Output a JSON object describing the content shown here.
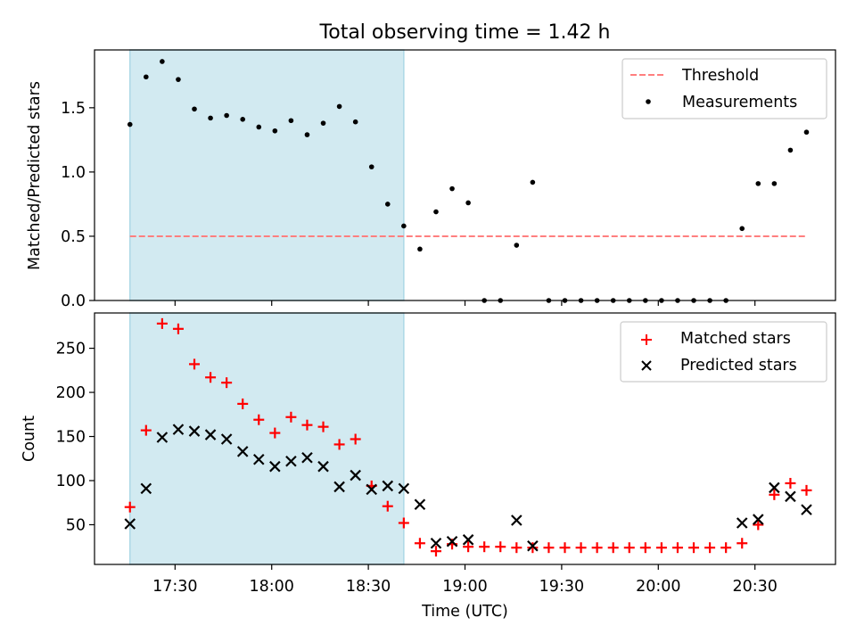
{
  "figure": {
    "title": "Total observing time = 1.42 h",
    "xlabel": "Time (UTC)",
    "xticks": [
      "17:30",
      "18:00",
      "18:30",
      "19:00",
      "19:30",
      "20:00",
      "20:30"
    ],
    "colors": {
      "span": "#add8e6",
      "threshold": "#ff7f7f",
      "measurements": "#000000",
      "matched": "#ff0000",
      "predicted": "#000000"
    }
  },
  "chart_data": [
    {
      "type": "scatter",
      "ylabel": "Matched/Predicted stars",
      "xlim": [
        "17:05",
        "20:55"
      ],
      "ylim": [
        0,
        1.95
      ],
      "yticks": [
        "0.0",
        "0.5",
        "1.0",
        "1.5"
      ],
      "observing_span": [
        "17:16",
        "18:41"
      ],
      "legend": {
        "position": "upper right",
        "entries": [
          "Threshold",
          "Measurements"
        ]
      },
      "series": [
        {
          "name": "Threshold",
          "kind": "dashed-line",
          "x": [
            "17:16",
            "20:46"
          ],
          "y": [
            0.5,
            0.5
          ]
        },
        {
          "name": "Measurements",
          "kind": "points",
          "x": [
            "17:16",
            "17:21",
            "17:26",
            "17:31",
            "17:36",
            "17:41",
            "17:46",
            "17:51",
            "17:56",
            "18:01",
            "18:06",
            "18:11",
            "18:16",
            "18:21",
            "18:26",
            "18:31",
            "18:36",
            "18:41",
            "18:46",
            "18:51",
            "18:56",
            "19:01",
            "19:06",
            "19:11",
            "19:16",
            "19:21",
            "19:26",
            "19:31",
            "19:36",
            "19:41",
            "19:46",
            "19:51",
            "19:56",
            "20:01",
            "20:06",
            "20:11",
            "20:16",
            "20:21",
            "20:26",
            "20:31",
            "20:36",
            "20:41",
            "20:46"
          ],
          "y": [
            1.37,
            1.74,
            1.86,
            1.72,
            1.49,
            1.42,
            1.44,
            1.41,
            1.35,
            1.32,
            1.4,
            1.29,
            1.38,
            1.51,
            1.39,
            1.04,
            0.75,
            0.58,
            0.4,
            0.69,
            0.87,
            0.76,
            0.0,
            0.0,
            0.43,
            0.92,
            0.0,
            0.0,
            0.0,
            0.0,
            0.0,
            0.0,
            0.0,
            0.0,
            0.0,
            0.0,
            0.0,
            0.0,
            0.56,
            0.91,
            0.91,
            1.17,
            1.31
          ]
        }
      ]
    },
    {
      "type": "scatter",
      "ylabel": "Count",
      "xlim": [
        "17:05",
        "20:55"
      ],
      "ylim": [
        5,
        290
      ],
      "yticks": [
        "50",
        "100",
        "150",
        "200",
        "250"
      ],
      "observing_span": [
        "17:16",
        "18:41"
      ],
      "legend": {
        "position": "upper right",
        "entries": [
          "Matched stars",
          "Predicted stars"
        ]
      },
      "series": [
        {
          "name": "Matched stars",
          "marker": "plus",
          "x": [
            "17:16",
            "17:21",
            "17:26",
            "17:31",
            "17:36",
            "17:41",
            "17:46",
            "17:51",
            "17:56",
            "18:01",
            "18:06",
            "18:11",
            "18:16",
            "18:21",
            "18:26",
            "18:31",
            "18:36",
            "18:41",
            "18:46",
            "18:51",
            "18:56",
            "19:01",
            "19:06",
            "19:11",
            "19:16",
            "19:21",
            "19:26",
            "19:31",
            "19:36",
            "19:41",
            "19:46",
            "19:51",
            "19:56",
            "20:01",
            "20:06",
            "20:11",
            "20:16",
            "20:21",
            "20:26",
            "20:31",
            "20:36",
            "20:41",
            "20:46"
          ],
          "y": [
            70,
            157,
            278,
            272,
            232,
            217,
            211,
            187,
            169,
            154,
            172,
            163,
            161,
            141,
            147,
            94,
            71,
            52,
            29,
            20,
            28,
            25,
            25,
            25,
            24,
            24,
            24,
            24,
            24,
            24,
            24,
            24,
            24,
            24,
            24,
            24,
            24,
            24,
            29,
            50,
            84,
            97,
            89
          ]
        },
        {
          "name": "Predicted stars",
          "marker": "x",
          "x": [
            "17:16",
            "17:21",
            "17:26",
            "17:31",
            "17:36",
            "17:41",
            "17:46",
            "17:51",
            "17:56",
            "18:01",
            "18:06",
            "18:11",
            "18:16",
            "18:21",
            "18:26",
            "18:31",
            "18:36",
            "18:41",
            "18:46",
            "18:51",
            "18:56",
            "19:01",
            "19:16",
            "19:21",
            "20:26",
            "20:31",
            "20:36",
            "20:41",
            "20:46"
          ],
          "y": [
            51,
            91,
            149,
            158,
            156,
            152,
            147,
            133,
            124,
            116,
            122,
            126,
            116,
            93,
            106,
            90,
            94,
            91,
            73,
            29,
            31,
            33,
            55,
            26,
            52,
            56,
            92,
            82,
            67
          ]
        }
      ]
    }
  ]
}
